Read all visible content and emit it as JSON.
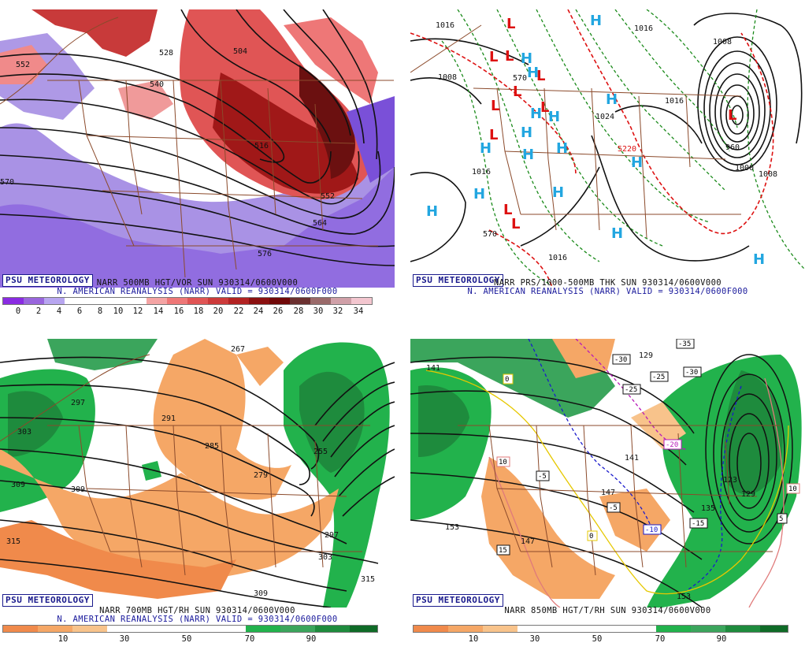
{
  "panels": [
    {
      "title": "NARR 500MB HGT/VOR SUN 930314/0600V000",
      "subtitle": "N. AMERICAN REANALYSIS (NARR) VALID = 930314/0600F000",
      "badge": "PSU METEOROLOGY",
      "legend": [
        "0",
        "2",
        "4",
        "6",
        "8",
        "10",
        "12",
        "14",
        "16",
        "18",
        "20",
        "22",
        "24",
        "26",
        "28",
        "30",
        "32",
        "34"
      ],
      "labels": [
        "552",
        "528",
        "540",
        "570",
        "504",
        "516",
        "528",
        "552",
        "564",
        "576"
      ]
    },
    {
      "title": "NARR PRS/1000-500MB THK SUN 930314/0600V000",
      "subtitle": "N. AMERICAN REANALYSIS (NARR) VALID = 930314/0600F000",
      "badge": "PSU METEOROLOGY",
      "labels": [
        "1016",
        "1016",
        "1008",
        "570",
        "1024",
        "1016",
        "1016",
        "1008",
        "960",
        "1000",
        "1008",
        "1016",
        "570",
        "5220"
      ]
    },
    {
      "title": "NARR 700MB HGT/RH SUN 930314/0600V000",
      "subtitle": "N. AMERICAN REANALYSIS (NARR) VALID = 930314/0600F000",
      "badge": "PSU METEOROLOGY",
      "legend": [
        "10",
        "30",
        "50",
        "70",
        "90"
      ],
      "labels": [
        "267",
        "297",
        "303",
        "309",
        "309",
        "291",
        "285",
        "279",
        "255",
        "315",
        "297",
        "303",
        "309",
        "315"
      ]
    },
    {
      "title": "NARR 850MB HGT/T/RH SUN 930314/0600V000",
      "badge": "PSU METEOROLOGY",
      "legend": [
        "10",
        "30",
        "50",
        "70",
        "90"
      ],
      "labels": [
        "141",
        "129",
        "141",
        "147",
        "153",
        "147",
        "135",
        "123",
        "129",
        "153"
      ],
      "temp_labels": [
        "-35",
        "-30",
        "-25",
        "-25",
        "-30",
        "-20",
        "-5",
        "-5",
        "-10",
        "-15",
        "10",
        "15",
        "5",
        "10",
        "0",
        "0"
      ]
    }
  ],
  "colors": {
    "vor_scale": [
      "#8a2be2",
      "#9966dd",
      "#b8a6f0",
      "#ffffff",
      "#ffffff",
      "#ffffff",
      "#ffffff",
      "#f4a4a4",
      "#ee7777",
      "#e05555",
      "#cc3a3a",
      "#b22222",
      "#8b1010",
      "#700808",
      "#6b3030",
      "#9a6a6a",
      "#d0a0a8",
      "#f3c6cf"
    ],
    "rh_scale": [
      "#f08a4b",
      "#f5a766",
      "#f8c38b",
      "#ffffff",
      "#ffffff",
      "#ffffff",
      "#ffffff",
      "#22b24c",
      "#3ba55c",
      "#1e8b3d",
      "#0f6b27"
    ]
  }
}
